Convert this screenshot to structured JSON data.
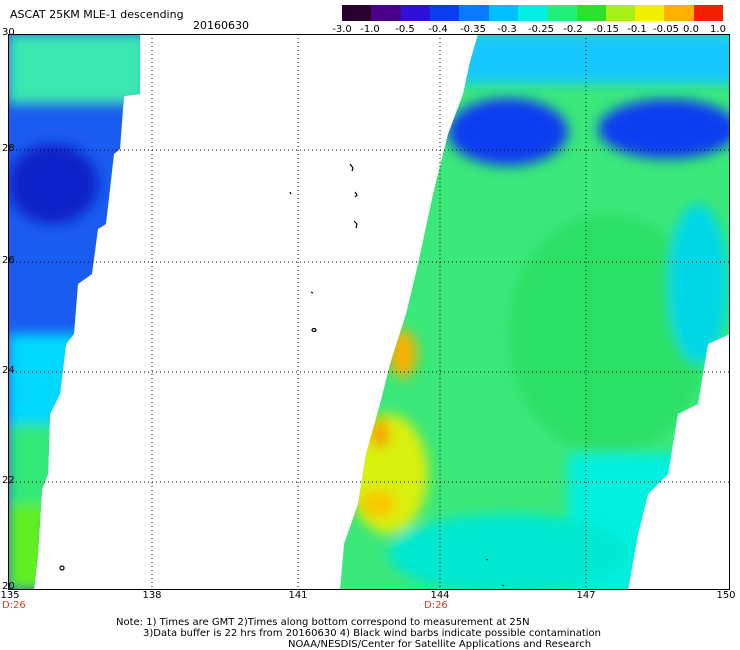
{
  "header": {
    "title": "ASCAT 25KM MLE-1 descending",
    "date": "20160630"
  },
  "colorbar": {
    "labels": [
      "-3.0",
      "-1.0",
      "-0.5",
      "-0.4",
      "-0.35",
      "-0.3",
      "-0.25",
      "-0.2",
      "-0.15",
      "-0.1",
      "-0.05",
      "0.0",
      "1.0"
    ],
    "colors": [
      "#2a0030",
      "#4b008a",
      "#3010d8",
      "#0a3cf0",
      "#0a78ff",
      "#00c0ff",
      "#00f0e8",
      "#20f07a",
      "#2ce02c",
      "#a8f018",
      "#f0f000",
      "#ffb000",
      "#f02000"
    ]
  },
  "map": {
    "lon_labels": [
      "135",
      "138",
      "141",
      "144",
      "147",
      "150"
    ],
    "lat_labels": [
      "30",
      "28",
      "26",
      "24",
      "22",
      "20"
    ],
    "day_markers": [
      "D:26",
      "D:26"
    ]
  },
  "footer": {
    "line1": "Note: 1) Times are GMT 2)Times along bottom correspond to measurement at 25N",
    "line2": "3)Data buffer is 22 hrs from 20160630 4) Black wind barbs indicate possible contamination",
    "line3": "NOAA/NESDIS/Center for Satellite Applications and Research"
  }
}
